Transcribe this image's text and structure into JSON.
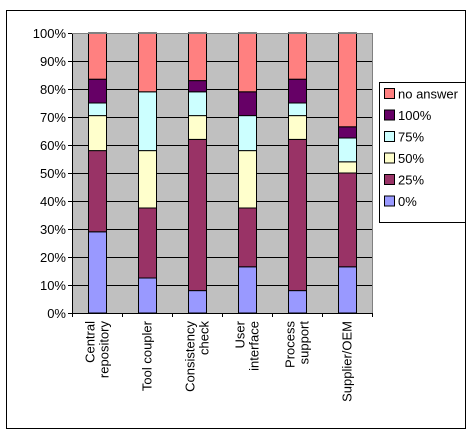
{
  "chart_data": {
    "type": "bar",
    "stacked": true,
    "percent": true,
    "categories": [
      "Central repository",
      "Tool coupler",
      "Consistency check",
      "User interface",
      "Process support",
      "Supplier/OEM"
    ],
    "category_labels": [
      [
        "Central",
        "repository"
      ],
      [
        "Tool coupler"
      ],
      [
        "Consistency",
        "check"
      ],
      [
        "User",
        "interface"
      ],
      [
        "Process",
        "support"
      ],
      [
        "Supplier/OEM"
      ]
    ],
    "series": [
      {
        "name": "0%",
        "color": "#9999ff",
        "values": [
          29,
          12.5,
          8,
          16.5,
          8,
          16.5
        ]
      },
      {
        "name": "25%",
        "color": "#993366",
        "values": [
          29,
          25,
          54,
          21,
          54,
          33.5
        ]
      },
      {
        "name": "50%",
        "color": "#ffffcc",
        "values": [
          12.5,
          20.5,
          8.5,
          20.5,
          8.5,
          4
        ]
      },
      {
        "name": "75%",
        "color": "#ccffff",
        "values": [
          4.5,
          21,
          8.5,
          12.5,
          4.5,
          8.5
        ]
      },
      {
        "name": "100%",
        "color": "#660066",
        "values": [
          8.5,
          0,
          4,
          8.5,
          8.5,
          4
        ]
      },
      {
        "name": "no answer",
        "color": "#ff8080",
        "values": [
          16.5,
          21,
          17,
          21,
          16.5,
          33.5
        ]
      }
    ],
    "legend_order": [
      "no answer",
      "100%",
      "75%",
      "50%",
      "25%",
      "0%"
    ],
    "y_ticks": [
      "0%",
      "10%",
      "20%",
      "30%",
      "40%",
      "50%",
      "60%",
      "70%",
      "80%",
      "90%",
      "100%"
    ],
    "ylim": [
      0,
      100
    ],
    "grid": true,
    "plot_background": "#c0c0c0",
    "legend_position": "right"
  }
}
